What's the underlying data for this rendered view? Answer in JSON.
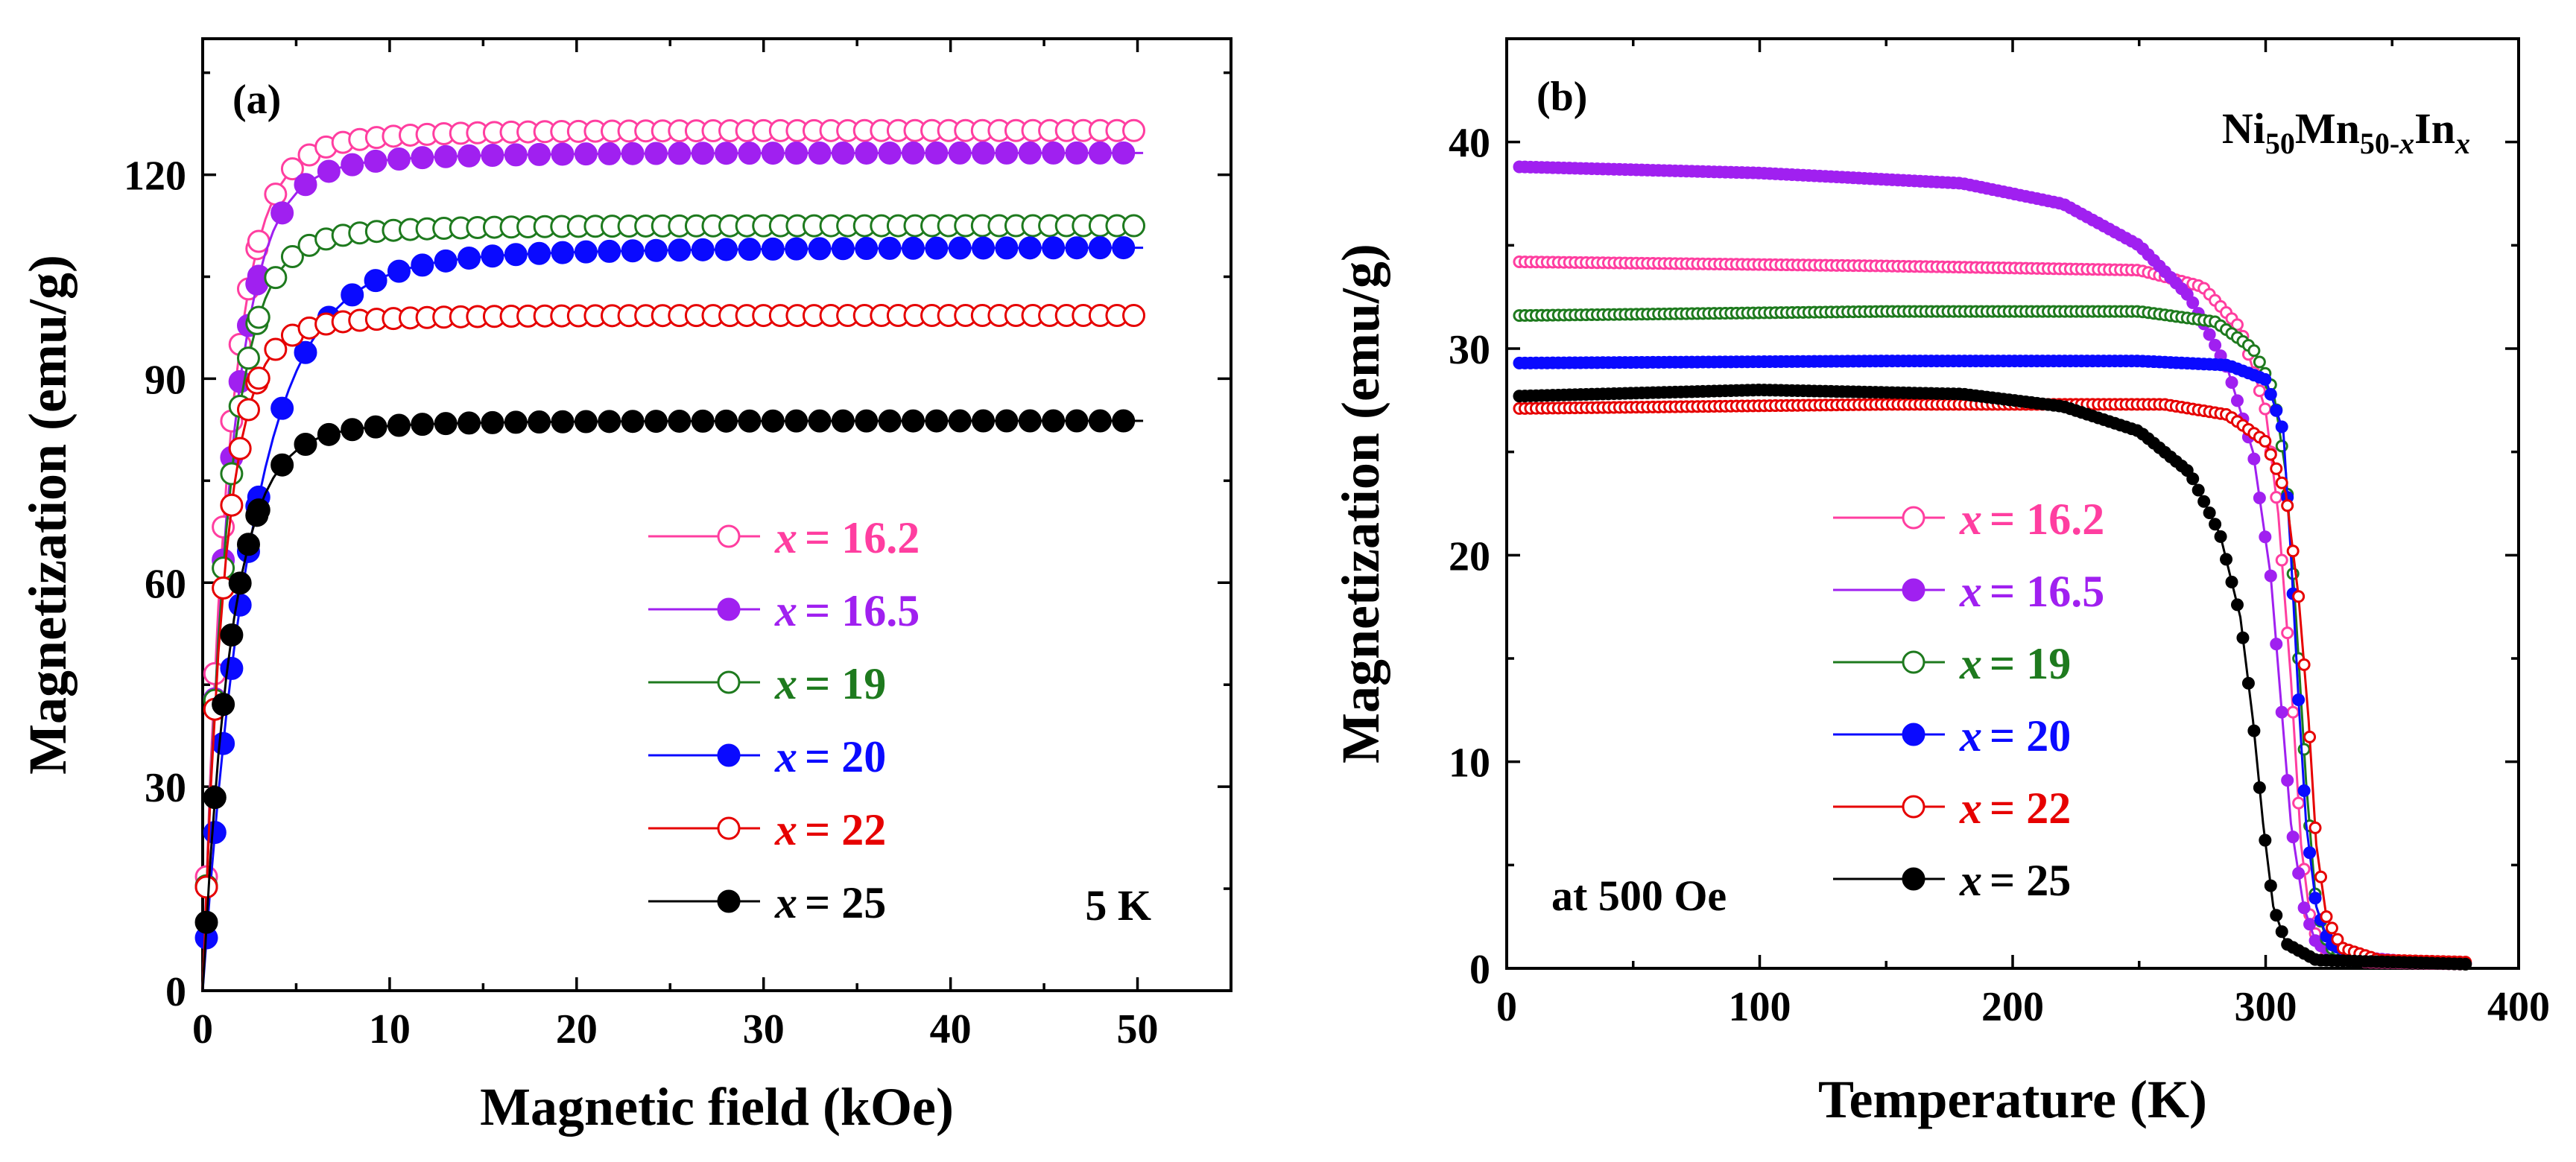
{
  "chart_data": [
    {
      "panel": "(a)",
      "type": "scatter",
      "xlabel": "Magnetic field (kOe)",
      "ylabel": "Magnetization (emu/g)",
      "xlim": [
        0,
        55
      ],
      "ylim": [
        0,
        140
      ],
      "xticks": [
        0,
        10,
        20,
        30,
        40,
        50
      ],
      "yticks": [
        0,
        30,
        60,
        90,
        120
      ],
      "annotation": "5 K",
      "legend_position": "center-right",
      "series": [
        {
          "name": "x = 16.2",
          "label_prefix": "x",
          "label_value": "= 16.2",
          "color": "#ff3ea0",
          "filled": false,
          "saturation": 126.5,
          "k": 1.0,
          "tau": 1.35
        },
        {
          "name": "x = 16.5",
          "label_prefix": "x",
          "label_value": "= 16.5",
          "color": "#a020f0",
          "filled": true,
          "saturation": 123.2,
          "k": 1.05,
          "tau": 1.45
        },
        {
          "name": "x = 19",
          "label_prefix": "x",
          "label_value": "= 19",
          "color": "#1e7a1e",
          "filled": false,
          "saturation": 112.5,
          "k": 1.0,
          "tau": 1.3
        },
        {
          "name": "x = 20",
          "label_prefix": "x",
          "label_value": "= 20",
          "color": "#0a0aff",
          "filled": true,
          "saturation": 109.3,
          "k": 1.0,
          "tau": 2.6
        },
        {
          "name": "x = 22",
          "label_prefix": "x",
          "label_value": "= 22",
          "color": "#e60000",
          "filled": false,
          "saturation": 99.3,
          "k": 1.0,
          "tau": 1.15
        },
        {
          "name": "x = 25",
          "label_prefix": "x",
          "label_value": "= 25",
          "color": "#000000",
          "filled": true,
          "saturation": 83.8,
          "k": 1.0,
          "tau": 1.5
        }
      ]
    },
    {
      "panel": "(b)",
      "type": "line",
      "xlabel": "Temperature (K)",
      "ylabel": "Magnetization (emu/g)",
      "xlim": [
        0,
        400
      ],
      "ylim": [
        0,
        45
      ],
      "xticks": [
        0,
        100,
        200,
        300,
        400
      ],
      "yticks": [
        0,
        10,
        20,
        30,
        40
      ],
      "annotation": "at 500 Oe",
      "title_formula": {
        "base1": "Ni",
        "sub1": "50",
        "base2": "Mn",
        "sub2a": "50-",
        "sub2b": "x",
        "base3": "In",
        "sub3": "x"
      },
      "legend_position": "center",
      "series": [
        {
          "name": "x = 16.2",
          "label_prefix": "x",
          "label_value": "= 16.2",
          "color": "#ff3ea0",
          "filled": false,
          "T_points": [
            [
              5,
              34.2
            ],
            [
              150,
              34.0
            ],
            [
              250,
              33.8
            ],
            [
              275,
              33.0
            ],
            [
              290,
              31.0
            ],
            [
              300,
              27.0
            ],
            [
              305,
              22.0
            ],
            [
              310,
              14.0
            ],
            [
              314,
              6.0
            ],
            [
              318,
              2.0
            ],
            [
              325,
              0.6
            ],
            [
              340,
              0.3
            ],
            [
              380,
              0.2
            ]
          ]
        },
        {
          "name": "x = 16.5",
          "label_prefix": "x",
          "label_value": "= 16.5",
          "color": "#a020f0",
          "filled": true,
          "T_points": [
            [
              5,
              38.8
            ],
            [
              100,
              38.5
            ],
            [
              180,
              38.0
            ],
            [
              220,
              37.0
            ],
            [
              250,
              35.0
            ],
            [
              270,
              32.5
            ],
            [
              285,
              29.0
            ],
            [
              295,
              25.0
            ],
            [
              302,
              19.0
            ],
            [
              306,
              13.0
            ],
            [
              310,
              7.0
            ],
            [
              315,
              3.0
            ],
            [
              320,
              1.2
            ],
            [
              330,
              0.6
            ],
            [
              360,
              0.3
            ],
            [
              380,
              0.25
            ]
          ]
        },
        {
          "name": "x = 19",
          "label_prefix": "x",
          "label_value": "= 19",
          "color": "#1e7a1e",
          "filled": false,
          "T_points": [
            [
              5,
              31.6
            ],
            [
              150,
              31.8
            ],
            [
              250,
              31.8
            ],
            [
              280,
              31.3
            ],
            [
              295,
              30.0
            ],
            [
              303,
              28.0
            ],
            [
              308,
              24.0
            ],
            [
              312,
              17.0
            ],
            [
              316,
              9.0
            ],
            [
              320,
              3.0
            ],
            [
              325,
              1.0
            ],
            [
              340,
              0.4
            ],
            [
              380,
              0.2
            ]
          ]
        },
        {
          "name": "x = 20",
          "label_prefix": "x",
          "label_value": "= 20",
          "color": "#0a0aff",
          "filled": true,
          "T_points": [
            [
              5,
              29.3
            ],
            [
              150,
              29.4
            ],
            [
              250,
              29.4
            ],
            [
              285,
              29.2
            ],
            [
              300,
              28.5
            ],
            [
              307,
              26.0
            ],
            [
              310,
              20.0
            ],
            [
              313,
              13.0
            ],
            [
              316,
              7.0
            ],
            [
              320,
              3.0
            ],
            [
              325,
              1.2
            ],
            [
              340,
              0.4
            ],
            [
              380,
              0.25
            ]
          ]
        },
        {
          "name": "x = 22",
          "label_prefix": "x",
          "label_value": "= 22",
          "color": "#e60000",
          "filled": false,
          "T_points": [
            [
              5,
              27.1
            ],
            [
              150,
              27.3
            ],
            [
              260,
              27.3
            ],
            [
              285,
              26.8
            ],
            [
              300,
              25.5
            ],
            [
              308,
              23.0
            ],
            [
              313,
              18.0
            ],
            [
              317,
              12.0
            ],
            [
              320,
              6.0
            ],
            [
              324,
              2.5
            ],
            [
              330,
              1.0
            ],
            [
              345,
              0.4
            ],
            [
              380,
              0.3
            ]
          ]
        },
        {
          "name": "x = 25",
          "label_prefix": "x",
          "label_value": "= 25",
          "color": "#000000",
          "filled": true,
          "T_points": [
            [
              5,
              27.7
            ],
            [
              100,
              28.0
            ],
            [
              180,
              27.8
            ],
            [
              220,
              27.2
            ],
            [
              250,
              26.0
            ],
            [
              270,
              24.0
            ],
            [
              282,
              21.0
            ],
            [
              290,
              17.0
            ],
            [
              295,
              12.0
            ],
            [
              299,
              7.0
            ],
            [
              303,
              3.0
            ],
            [
              308,
              1.2
            ],
            [
              320,
              0.4
            ],
            [
              380,
              0.2
            ]
          ]
        }
      ]
    }
  ]
}
